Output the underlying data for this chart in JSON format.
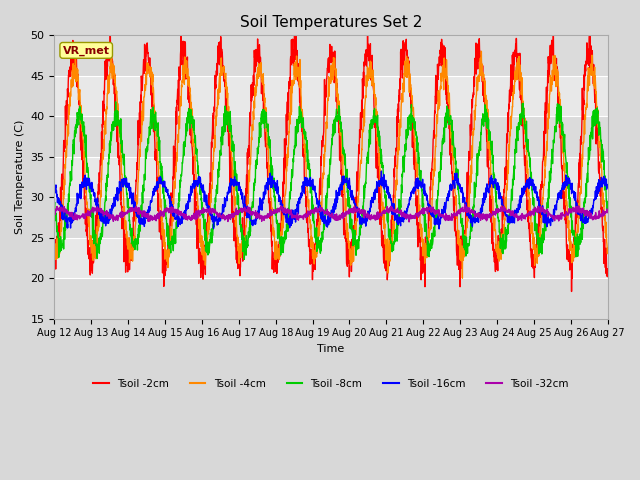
{
  "title": "Soil Temperatures Set 2",
  "xlabel": "Time",
  "ylabel": "Soil Temperature (C)",
  "ylim": [
    15,
    50
  ],
  "yticks": [
    15,
    20,
    25,
    30,
    35,
    40,
    45,
    50
  ],
  "n_days": 15,
  "x_tick_labels": [
    "Aug 12",
    "Aug 13",
    "Aug 14",
    "Aug 15",
    "Aug 16",
    "Aug 17",
    "Aug 18",
    "Aug 19",
    "Aug 20",
    "Aug 21",
    "Aug 22",
    "Aug 23",
    "Aug 24",
    "Aug 25",
    "Aug 26",
    "Aug 27"
  ],
  "fig_bg_color": "#d8d8d8",
  "plot_bg_color": "#e8e8e8",
  "grid_color": "#ffffff",
  "annotation_text": "VR_met",
  "annotation_box_color": "#ffff99",
  "annotation_border_color": "#999900",
  "annotation_text_color": "#880000",
  "series": [
    {
      "label": "Tsoil -2cm",
      "color": "#ff0000",
      "linewidth": 1.0,
      "mean": 35.0,
      "amplitude": 13.0,
      "phase": 0.25,
      "lag": 0.0
    },
    {
      "label": "Tsoil -4cm",
      "color": "#ff8800",
      "linewidth": 1.0,
      "mean": 34.5,
      "amplitude": 11.5,
      "phase": 0.25,
      "lag": 0.06
    },
    {
      "label": "Tsoil -8cm",
      "color": "#00cc00",
      "linewidth": 1.0,
      "mean": 32.0,
      "amplitude": 8.0,
      "phase": 0.25,
      "lag": 0.18
    },
    {
      "label": "Tsoil -16cm",
      "color": "#0000ff",
      "linewidth": 1.0,
      "mean": 29.5,
      "amplitude": 2.5,
      "phase": 0.25,
      "lag": 0.38
    },
    {
      "label": "Tsoil -32cm",
      "color": "#aa00aa",
      "linewidth": 1.0,
      "mean": 28.0,
      "amplitude": 0.5,
      "phase": 0.25,
      "lag": 0.65
    }
  ]
}
